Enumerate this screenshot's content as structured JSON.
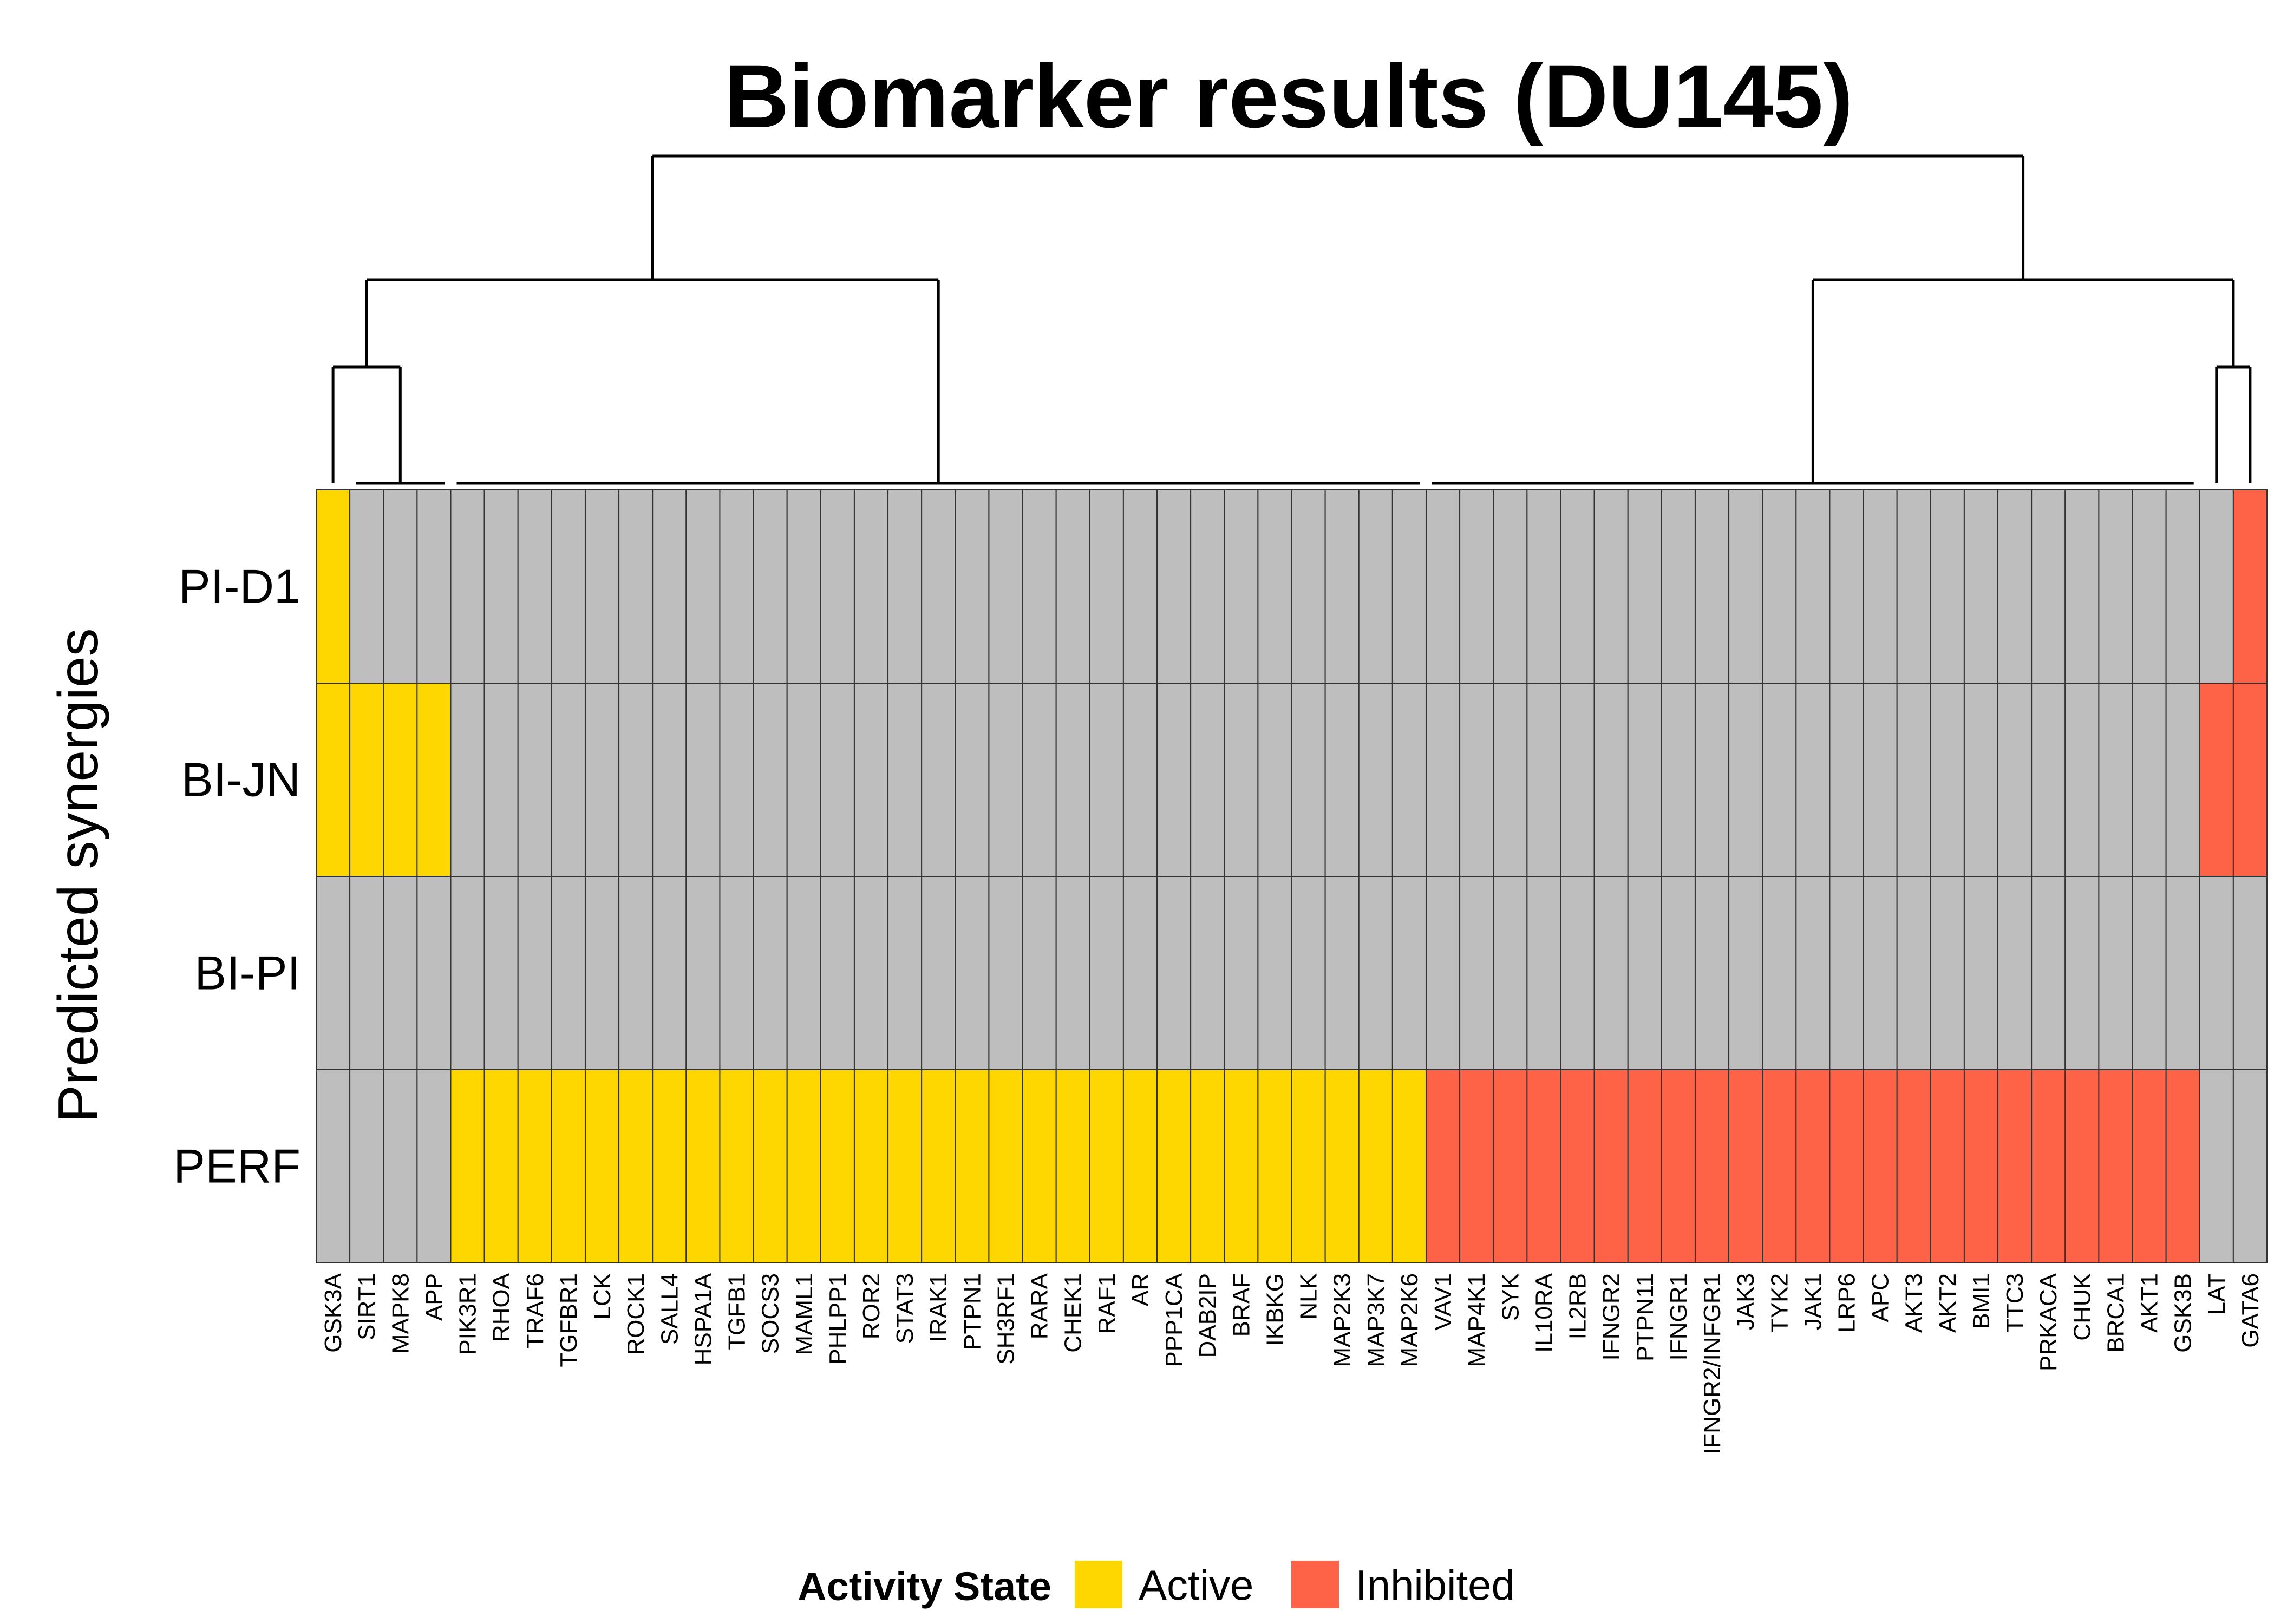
{
  "chart_data": {
    "type": "heatmap",
    "title": "Biomarker results (DU145)",
    "ylabel": "Predicted synergies",
    "rows": [
      "PI-D1",
      "BI-JN",
      "BI-PI",
      "PERF"
    ],
    "columns": [
      "GSK3A",
      "SIRT1",
      "MAPK8",
      "APP",
      "PIK3R1",
      "RHOA",
      "TRAF6",
      "TGFBR1",
      "LCK",
      "ROCK1",
      "SALL4",
      "HSPA1A",
      "TGFB1",
      "SOCS3",
      "MAML1",
      "PHLPP1",
      "ROR2",
      "STAT3",
      "IRAK1",
      "PTPN1",
      "SH3RF1",
      "RARA",
      "CHEK1",
      "RAF1",
      "AR",
      "PPP1CA",
      "DAB2IP",
      "BRAF",
      "IKBKG",
      "NLK",
      "MAP2K3",
      "MAP3K7",
      "MAP2K6",
      "VAV1",
      "MAP4K1",
      "SYK",
      "IL10RA",
      "IL2RB",
      "IFNGR2",
      "PTPN11",
      "IFNGR1",
      "IFNGR2/INFGR1",
      "JAK3",
      "TYK2",
      "JAK1",
      "LRP6",
      "APC",
      "AKT3",
      "AKT2",
      "BMI1",
      "TTC3",
      "PRKACA",
      "CHUK",
      "BRCA1",
      "AKT1",
      "GSK3B",
      "LAT",
      "GATA6"
    ],
    "values": [
      [
        1,
        0,
        0,
        0,
        0,
        0,
        0,
        0,
        0,
        0,
        0,
        0,
        0,
        0,
        0,
        0,
        0,
        0,
        0,
        0,
        0,
        0,
        0,
        0,
        0,
        0,
        0,
        0,
        0,
        0,
        0,
        0,
        0,
        0,
        0,
        0,
        0,
        0,
        0,
        0,
        0,
        0,
        0,
        0,
        0,
        0,
        0,
        0,
        0,
        0,
        0,
        0,
        0,
        0,
        0,
        0,
        0,
        -1
      ],
      [
        1,
        1,
        1,
        1,
        0,
        0,
        0,
        0,
        0,
        0,
        0,
        0,
        0,
        0,
        0,
        0,
        0,
        0,
        0,
        0,
        0,
        0,
        0,
        0,
        0,
        0,
        0,
        0,
        0,
        0,
        0,
        0,
        0,
        0,
        0,
        0,
        0,
        0,
        0,
        0,
        0,
        0,
        0,
        0,
        0,
        0,
        0,
        0,
        0,
        0,
        0,
        0,
        0,
        0,
        0,
        0,
        -1,
        -1
      ],
      [
        0,
        0,
        0,
        0,
        0,
        0,
        0,
        0,
        0,
        0,
        0,
        0,
        0,
        0,
        0,
        0,
        0,
        0,
        0,
        0,
        0,
        0,
        0,
        0,
        0,
        0,
        0,
        0,
        0,
        0,
        0,
        0,
        0,
        0,
        0,
        0,
        0,
        0,
        0,
        0,
        0,
        0,
        0,
        0,
        0,
        0,
        0,
        0,
        0,
        0,
        0,
        0,
        0,
        0,
        0,
        0,
        0,
        0
      ],
      [
        0,
        0,
        0,
        0,
        1,
        1,
        1,
        1,
        1,
        1,
        1,
        1,
        1,
        1,
        1,
        1,
        1,
        1,
        1,
        1,
        1,
        1,
        1,
        1,
        1,
        1,
        1,
        1,
        1,
        1,
        1,
        1,
        1,
        -1,
        -1,
        -1,
        -1,
        -1,
        -1,
        -1,
        -1,
        -1,
        -1,
        -1,
        -1,
        -1,
        -1,
        -1,
        -1,
        -1,
        -1,
        -1,
        -1,
        -1,
        -1,
        -1,
        0,
        0
      ]
    ],
    "value_encoding": {
      "1": "Active",
      "-1": "Inhibited",
      "0": "none"
    },
    "colors": {
      "active": "#FFD700",
      "inhibited": "#FF6347",
      "none": "#BEBEBE"
    },
    "legend": {
      "title": "Activity State",
      "entries": [
        {
          "label": "Active",
          "color": "#FFD700"
        },
        {
          "label": "Inhibited",
          "color": "#FF6347"
        }
      ],
      "placement": "bottom"
    }
  }
}
